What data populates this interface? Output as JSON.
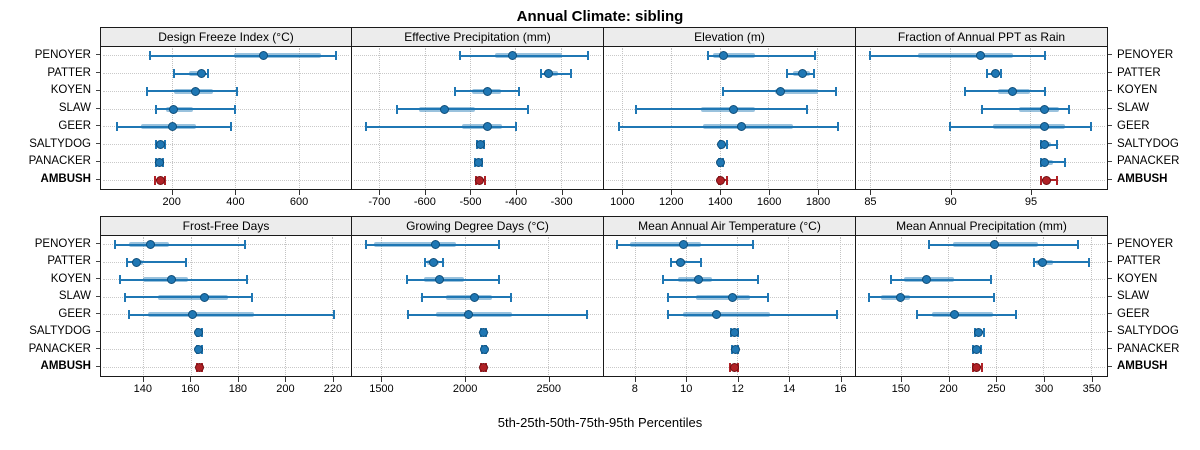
{
  "chart_data": {
    "type": "scatter",
    "variant": "percentile-dotplot",
    "title": "Annual Climate: sibling",
    "xlabel": "5th-25th-50th-75th-95th Percentiles",
    "percentiles": [
      5,
      25,
      50,
      75,
      95
    ],
    "sites": [
      "PENOYER",
      "PATTER",
      "KOYEN",
      "SLAW",
      "GEER",
      "SALTYDOG",
      "PANACKER",
      "AMBUSH"
    ],
    "highlight_site": "AMBUSH",
    "layout": {
      "rows": 2,
      "cols": 4,
      "legend": "none",
      "grid": "dotted",
      "strip_position": "top"
    },
    "colors": {
      "series": "#1f77b4",
      "series_box": "rgba(31,119,180,0.45)",
      "highlight": "#b02126",
      "highlight_box": "rgba(176,33,38,0.5)",
      "strip_bg": "#ececec",
      "grid": "#c3c3c3",
      "border": "#1a1a1a"
    },
    "panels": [
      {
        "title": "Design Freeze Index (°C)",
        "row": 0,
        "xmin": -25,
        "xmax": 766,
        "ticks": [
          200,
          400,
          600
        ],
        "values": [
          [
            130,
            395,
            490,
            670,
            720
          ],
          [
            207,
            252,
            293,
            305,
            315
          ],
          [
            120,
            207,
            275,
            330,
            405
          ],
          [
            148,
            180,
            205,
            265,
            400
          ],
          [
            25,
            100,
            200,
            275,
            385
          ],
          [
            150,
            157,
            163,
            169,
            176
          ],
          [
            149,
            156,
            161,
            166,
            172
          ],
          [
            147,
            155,
            162,
            170,
            178
          ]
        ]
      },
      {
        "title": "Effective Precipitation (mm)",
        "row": 0,
        "xmin": -760,
        "xmax": -207,
        "ticks": [
          -700,
          -600,
          -500,
          -400,
          -300
        ],
        "values": [
          [
            -521,
            -446,
            -406,
            -297,
            -241
          ],
          [
            -344,
            -336,
            -326,
            -307,
            -278
          ],
          [
            -533,
            -495,
            -462,
            -432,
            -392
          ],
          [
            -660,
            -612,
            -557,
            -489,
            -373
          ],
          [
            -730,
            -518,
            -462,
            -429,
            -398
          ],
          [
            -484,
            -480,
            -477,
            -473,
            -469
          ],
          [
            -488,
            -484,
            -481,
            -478,
            -474
          ],
          [
            -486,
            -482,
            -478,
            -473,
            -468
          ]
        ]
      },
      {
        "title": "Elevation (m)",
        "row": 0,
        "xmin": 925,
        "xmax": 1955,
        "ticks": [
          1000,
          1200,
          1400,
          1600,
          1800
        ],
        "values": [
          [
            1350,
            1373,
            1415,
            1543,
            1790
          ],
          [
            1678,
            1700,
            1738,
            1772,
            1786
          ],
          [
            1414,
            1625,
            1650,
            1803,
            1878
          ],
          [
            1057,
            1325,
            1456,
            1543,
            1759
          ],
          [
            985,
            1331,
            1488,
            1700,
            1885
          ],
          [
            1399,
            1403,
            1407,
            1416,
            1429
          ],
          [
            1398,
            1402,
            1405,
            1409,
            1413
          ],
          [
            1396,
            1400,
            1404,
            1412,
            1428
          ]
        ]
      },
      {
        "title": "Fraction of Annual PPT as Rain",
        "row": 0,
        "xmin": 84.1,
        "xmax": 99.8,
        "ticks": [
          85,
          90,
          95
        ],
        "values": [
          [
            85.0,
            88.0,
            91.9,
            93.9,
            95.9
          ],
          [
            92.3,
            92.6,
            92.8,
            93.0,
            93.2
          ],
          [
            90.9,
            93.0,
            93.9,
            95.0,
            95.9
          ],
          [
            92.0,
            94.3,
            95.9,
            96.8,
            97.4
          ],
          [
            90.0,
            92.7,
            95.9,
            97.2,
            98.8
          ],
          [
            95.7,
            95.8,
            95.9,
            96.3,
            96.7
          ],
          [
            95.7,
            95.8,
            95.9,
            96.4,
            97.2
          ],
          [
            95.7,
            95.9,
            96.0,
            96.3,
            96.7
          ]
        ]
      },
      {
        "title": "Frost-Free Days",
        "row": 1,
        "xmin": 122,
        "xmax": 228,
        "ticks": [
          140,
          160,
          180,
          200,
          220
        ],
        "values": [
          [
            128,
            134,
            143,
            151,
            183
          ],
          [
            133,
            135,
            137,
            140,
            158
          ],
          [
            130,
            140,
            152,
            159,
            184
          ],
          [
            132,
            146,
            166,
            176,
            186
          ],
          [
            134,
            142,
            161,
            187,
            221
          ],
          [
            162.5,
            163.0,
            163.5,
            164.0,
            164.8
          ],
          [
            162.5,
            163.0,
            163.5,
            164.0,
            164.8
          ],
          [
            162.7,
            163.2,
            163.8,
            164.3,
            165.0
          ]
        ]
      },
      {
        "title": "Growing Degree Days (°C)",
        "row": 1,
        "xmin": 1324,
        "xmax": 2830,
        "ticks": [
          1500,
          2000,
          2500
        ],
        "values": [
          [
            1408,
            1458,
            1822,
            1946,
            2205
          ],
          [
            1762,
            1776,
            1812,
            1846,
            1872
          ],
          [
            1656,
            1756,
            1850,
            1996,
            2205
          ],
          [
            1742,
            1886,
            2056,
            2166,
            2280
          ],
          [
            1662,
            1830,
            2020,
            2286,
            2736
          ],
          [
            2098,
            2105,
            2112,
            2120,
            2128
          ],
          [
            2102,
            2109,
            2116,
            2122,
            2128
          ],
          [
            2096,
            2103,
            2110,
            2118,
            2126
          ]
        ]
      },
      {
        "title": "Mean Annual Air Temperature (°C)",
        "row": 1,
        "xmin": 6.8,
        "xmax": 16.6,
        "ticks": [
          8,
          10,
          12,
          14,
          16
        ],
        "values": [
          [
            7.3,
            7.8,
            9.9,
            10.6,
            12.6
          ],
          [
            9.4,
            9.6,
            9.8,
            10.0,
            10.6
          ],
          [
            9.1,
            9.7,
            10.5,
            11.0,
            12.8
          ],
          [
            9.3,
            10.4,
            11.8,
            12.5,
            13.2
          ],
          [
            9.3,
            9.9,
            11.2,
            13.3,
            15.9
          ],
          [
            11.75,
            11.82,
            11.88,
            11.95,
            12.02
          ],
          [
            11.8,
            11.86,
            11.92,
            11.97,
            12.02
          ],
          [
            11.7,
            11.8,
            11.88,
            11.97,
            12.05
          ]
        ]
      },
      {
        "title": "Mean Annual Precipitation (mm)",
        "row": 1,
        "xmin": 103,
        "xmax": 367,
        "ticks": [
          150,
          200,
          250,
          300,
          350
        ],
        "values": [
          [
            180,
            205,
            249,
            294,
            337
          ],
          [
            290,
            292,
            299,
            310,
            348
          ],
          [
            140,
            153,
            177,
            206,
            245
          ],
          [
            117,
            129,
            150,
            160,
            248
          ],
          [
            167,
            183,
            207,
            247,
            271
          ],
          [
            228,
            230,
            232,
            235,
            238
          ],
          [
            226,
            228,
            230,
            232,
            234
          ],
          [
            226,
            228,
            230,
            233,
            236
          ]
        ]
      }
    ]
  }
}
